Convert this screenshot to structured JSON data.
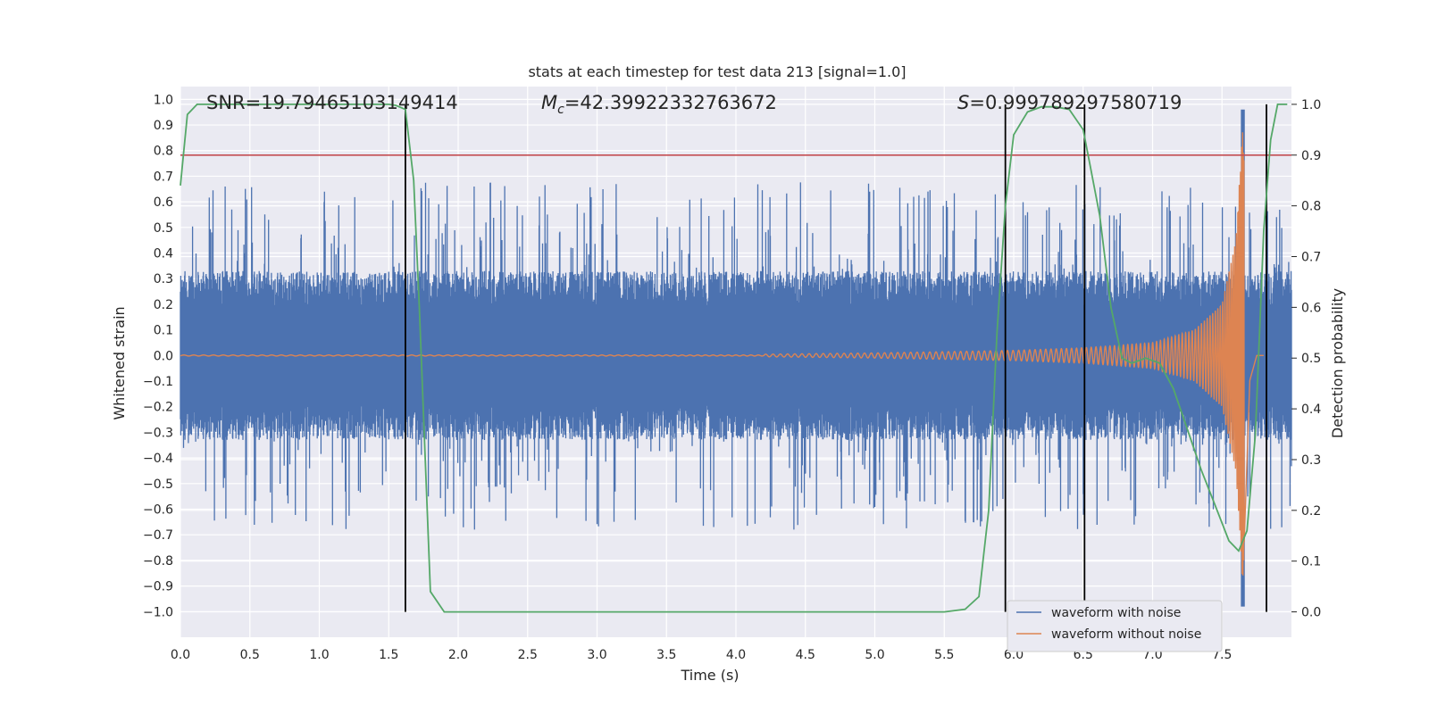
{
  "chart_data": {
    "type": "line",
    "title": "stats at each timestep for test data 213 [signal=1.0]",
    "xlabel": "Time (s)",
    "ylabel": "Whitened strain",
    "y2label": "Detection probability",
    "xlim": [
      0.0,
      8.0
    ],
    "ylim": [
      -1.1,
      1.05
    ],
    "y2lim": [
      -0.05,
      1.035
    ],
    "x_ticks": [
      0.0,
      0.5,
      1.0,
      1.5,
      2.0,
      2.5,
      3.0,
      3.5,
      4.0,
      4.5,
      5.0,
      5.5,
      6.0,
      6.5,
      7.0,
      7.5
    ],
    "y_ticks": [
      -1.0,
      -0.9,
      -0.8,
      -0.7,
      -0.6,
      -0.5,
      -0.4,
      -0.3,
      -0.2,
      -0.1,
      0.0,
      0.1,
      0.2,
      0.3,
      0.4,
      0.5,
      0.6,
      0.7,
      0.8,
      0.9,
      1.0
    ],
    "y2_ticks": [
      0.0,
      0.1,
      0.2,
      0.3,
      0.4,
      0.5,
      0.6,
      0.7,
      0.8,
      0.9,
      1.0
    ],
    "grid": true,
    "annotations": {
      "snr": "SNR=19.79465103149414",
      "mc_symbol": "M",
      "mc_sub": "c",
      "mc_value": "=42.39922332763672",
      "s_symbol": "S",
      "s_value": "=0.999789297580719"
    },
    "threshold_line": {
      "axis": "y2",
      "value": 0.9,
      "color": "#c44e52"
    },
    "vertical_lines": [
      1.62,
      5.94,
      6.51,
      7.82
    ],
    "series": [
      {
        "name": "waveform with noise",
        "axis": "y",
        "color": "#4c72b0",
        "description": "noisy whitened strain, amplitude envelope roughly ±0.4 with spikes to ±0.7; includes chirp spike near 7.65 s reaching ±0.95",
        "noise_envelope": 0.33,
        "spike_max": 0.68
      },
      {
        "name": "waveform without noise",
        "axis": "y",
        "color": "#dd8452",
        "description": "clean chirp signal, near zero until ~4.2 s then growing oscillation peaking ~0.9 at 7.65 s",
        "chirp_points": [
          [
            4.2,
            0.005
          ],
          [
            5.0,
            0.01
          ],
          [
            5.5,
            0.015
          ],
          [
            6.0,
            0.02
          ],
          [
            6.5,
            0.03
          ],
          [
            7.0,
            0.05
          ],
          [
            7.3,
            0.1
          ],
          [
            7.5,
            0.2
          ],
          [
            7.6,
            0.45
          ],
          [
            7.65,
            0.9
          ],
          [
            7.7,
            0.1
          ],
          [
            7.75,
            0.0
          ]
        ]
      },
      {
        "name": "detection probability",
        "axis": "y2",
        "color": "#55a868",
        "x": [
          0.0,
          0.05,
          0.12,
          0.2,
          0.4,
          0.8,
          1.2,
          1.5,
          1.55,
          1.62,
          1.68,
          1.72,
          1.8,
          1.9,
          2.0,
          3.0,
          4.0,
          5.0,
          5.5,
          5.65,
          5.75,
          5.82,
          5.88,
          5.94,
          6.0,
          6.1,
          6.2,
          6.3,
          6.4,
          6.5,
          6.55,
          6.62,
          6.7,
          6.78,
          6.85,
          6.95,
          7.05,
          7.15,
          7.25,
          7.35,
          7.45,
          7.55,
          7.62,
          7.68,
          7.74,
          7.8,
          7.85,
          7.9,
          7.97
        ],
        "values": [
          0.84,
          0.98,
          1.0,
          1.0,
          1.0,
          1.0,
          1.0,
          1.0,
          0.998,
          0.99,
          0.85,
          0.6,
          0.04,
          0.0,
          0.0,
          0.0,
          0.0,
          0.0,
          0.0,
          0.005,
          0.03,
          0.2,
          0.55,
          0.8,
          0.94,
          0.985,
          0.995,
          0.995,
          0.99,
          0.95,
          0.88,
          0.78,
          0.6,
          0.5,
          0.49,
          0.5,
          0.49,
          0.44,
          0.36,
          0.28,
          0.21,
          0.14,
          0.12,
          0.16,
          0.35,
          0.75,
          0.93,
          1.0,
          1.0
        ]
      }
    ],
    "legend": {
      "location": "lower-right",
      "entries": [
        {
          "label": "waveform with noise",
          "color": "#4c72b0"
        },
        {
          "label": "waveform without noise",
          "color": "#dd8452"
        }
      ]
    },
    "colors": {
      "plot_background": "#eaeaf2",
      "grid": "#ffffff",
      "vertical_line": "#000000"
    }
  }
}
